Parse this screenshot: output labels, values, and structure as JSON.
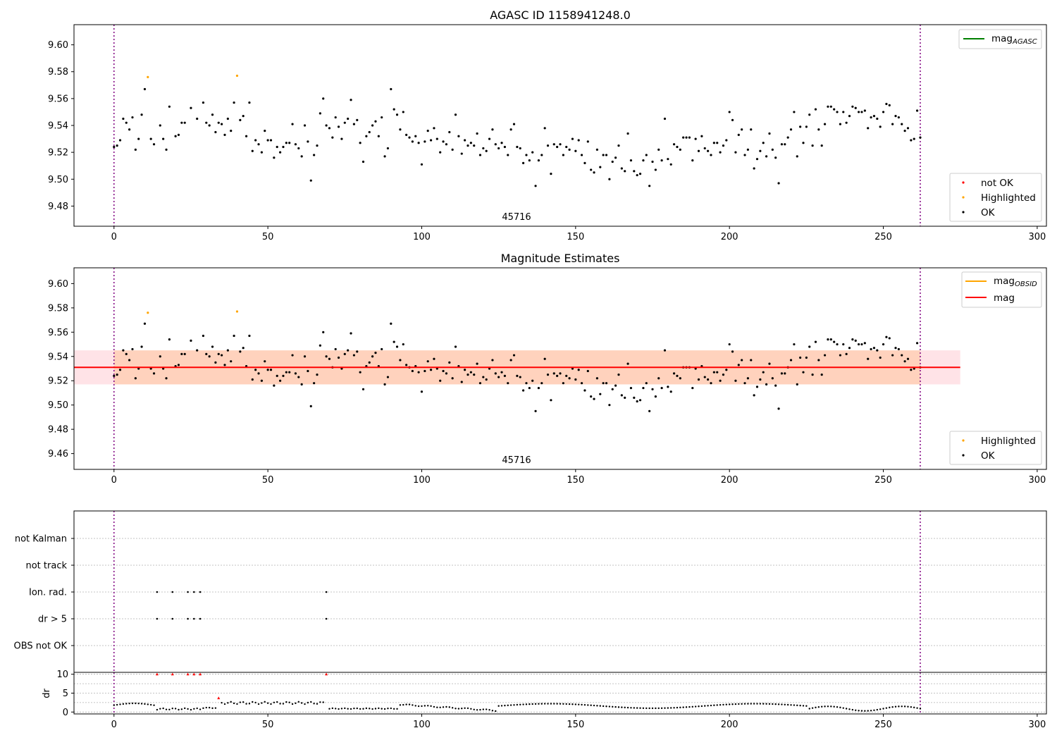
{
  "chart_data": [
    {
      "type": "scatter",
      "title": "AGASC ID 1158941248.0",
      "annotation": "45716",
      "xlim": [
        -13,
        303
      ],
      "ylim": [
        9.465,
        9.615
      ],
      "x_ticks": [
        0,
        50,
        100,
        150,
        200,
        250,
        300
      ],
      "y_ticks": [
        9.48,
        9.5,
        9.52,
        9.54,
        9.56,
        9.58,
        9.6
      ],
      "grid": false,
      "vertical_lines": [
        0,
        262
      ],
      "legend_top": {
        "position": "top-right",
        "entries": [
          {
            "label": "mag",
            "subscript": "AGASC",
            "color": "#008000"
          }
        ]
      },
      "legend_bottom": {
        "position": "bottom-right",
        "entries": [
          {
            "label": "not OK",
            "color": "#ff0000"
          },
          {
            "label": "Highlighted",
            "color": "#ffa500"
          },
          {
            "label": "OK",
            "color": "#000000"
          }
        ]
      },
      "series": [
        {
          "name": "Highlighted",
          "color": "#ffa500",
          "x": [
            11,
            40
          ],
          "y": [
            9.576,
            9.577
          ]
        },
        {
          "name": "OK",
          "color": "#000000",
          "x": [
            0,
            1,
            2,
            3,
            4,
            5,
            6,
            7,
            8,
            9,
            10,
            12,
            13,
            15,
            16,
            17,
            18,
            20,
            21,
            22,
            23,
            25,
            27,
            29,
            30,
            31,
            32,
            33,
            34,
            35,
            36,
            37,
            38,
            39,
            41,
            42,
            43,
            44,
            45,
            46,
            47,
            48,
            49,
            50,
            51,
            52,
            53,
            54,
            55,
            56,
            57,
            58,
            59,
            60,
            61,
            62,
            63,
            64,
            65,
            66,
            67,
            68,
            69,
            70,
            71,
            72,
            73,
            74,
            75,
            76,
            77,
            78,
            79,
            80,
            81,
            82,
            83,
            84,
            85,
            86,
            87,
            88,
            89,
            90,
            91,
            92,
            93,
            94,
            95,
            96,
            97,
            98,
            99,
            100,
            101,
            102,
            103,
            104,
            105,
            106,
            107,
            108,
            109,
            110,
            111,
            112,
            113,
            114,
            115,
            116,
            117,
            118,
            119,
            120,
            121,
            122,
            123,
            124,
            125,
            126,
            127,
            128,
            129,
            130,
            131,
            132,
            133,
            134,
            135,
            136,
            137,
            138,
            139,
            140,
            141,
            142,
            143,
            144,
            145,
            146,
            147,
            148,
            149,
            150,
            151,
            152,
            153,
            154,
            155,
            156,
            157,
            158,
            159,
            160,
            161,
            162,
            163,
            164,
            165,
            166,
            167,
            168,
            169,
            170,
            171,
            172,
            173,
            174,
            175,
            176,
            177,
            178,
            179,
            180,
            181,
            182,
            183,
            184,
            185,
            186,
            187,
            188,
            189,
            190,
            191,
            192,
            193,
            194,
            195,
            196,
            197,
            198,
            199,
            200,
            201,
            202,
            203,
            204,
            205,
            206,
            207,
            208,
            209,
            210,
            211,
            212,
            213,
            214,
            215,
            216,
            217,
            218,
            219,
            220,
            221,
            222,
            223,
            224,
            225,
            226,
            227,
            228,
            229,
            230,
            231,
            232,
            233,
            234,
            235,
            236,
            237,
            238,
            239,
            240,
            241,
            242,
            243,
            244,
            245,
            246,
            247,
            248,
            249,
            250,
            251,
            252,
            253,
            254,
            255,
            256,
            257,
            258,
            259,
            260,
            261,
            262
          ],
          "y": [
            9.524,
            9.525,
            9.529,
            9.545,
            9.542,
            9.537,
            9.546,
            9.522,
            9.53,
            9.548,
            9.567,
            9.53,
            9.526,
            9.54,
            9.53,
            9.522,
            9.554,
            9.532,
            9.533,
            9.542,
            9.542,
            9.553,
            9.545,
            9.557,
            9.542,
            9.54,
            9.548,
            9.535,
            9.542,
            9.541,
            9.533,
            9.545,
            9.536,
            9.557,
            9.544,
            9.547,
            9.532,
            9.557,
            9.521,
            9.529,
            9.526,
            9.52,
            9.536,
            9.529,
            9.529,
            9.516,
            9.524,
            9.52,
            9.524,
            9.527,
            9.527,
            9.541,
            9.526,
            9.523,
            9.517,
            9.54,
            9.528,
            9.499,
            9.518,
            9.525,
            9.549,
            9.56,
            9.54,
            9.538,
            9.531,
            9.546,
            9.539,
            9.53,
            9.542,
            9.545,
            9.559,
            9.541,
            9.544,
            9.527,
            9.513,
            9.532,
            9.535,
            9.54,
            9.543,
            9.532,
            9.546,
            9.517,
            9.523,
            9.567,
            9.552,
            9.548,
            9.537,
            9.55,
            9.533,
            9.531,
            9.528,
            9.532,
            9.527,
            9.511,
            9.528,
            9.536,
            9.529,
            9.538,
            9.53,
            9.52,
            9.528,
            9.526,
            9.535,
            9.522,
            9.548,
            9.532,
            9.519,
            9.529,
            9.525,
            9.527,
            9.525,
            9.534,
            9.518,
            9.523,
            9.521,
            9.53,
            9.537,
            9.526,
            9.523,
            9.527,
            9.524,
            9.518,
            9.537,
            9.541,
            9.524,
            9.523,
            9.512,
            9.518,
            9.514,
            9.52,
            9.495,
            9.514,
            9.518,
            9.538,
            9.525,
            9.504,
            9.526,
            9.524,
            9.526,
            9.518,
            9.524,
            9.522,
            9.53,
            9.521,
            9.529,
            9.518,
            9.512,
            9.528,
            9.507,
            9.505,
            9.522,
            9.509,
            9.518,
            9.518,
            9.5,
            9.513,
            9.516,
            9.525,
            9.508,
            9.506,
            9.534,
            9.514,
            9.506,
            9.503,
            9.504,
            9.514,
            9.518,
            9.495,
            9.513,
            9.507,
            9.522,
            9.514,
            9.545,
            9.515,
            9.511,
            9.526,
            9.524,
            9.522,
            9.531,
            9.531,
            9.531,
            9.514,
            9.53,
            9.521,
            9.532,
            9.523,
            9.521,
            9.518,
            9.527,
            9.527,
            9.52,
            9.525,
            9.529,
            9.55,
            9.544,
            9.52,
            9.533,
            9.537,
            9.518,
            9.522,
            9.537,
            9.508,
            9.515,
            9.521,
            9.527,
            9.517,
            9.534,
            9.522,
            9.516,
            9.497,
            9.526,
            9.526,
            9.531,
            9.537,
            9.55,
            9.517,
            9.539,
            9.527,
            9.539,
            9.548,
            9.525,
            9.552,
            9.537,
            9.525,
            9.541,
            9.554,
            9.554,
            9.552,
            9.55,
            9.541,
            9.55,
            9.542,
            9.547,
            9.554,
            9.553,
            9.55,
            9.55,
            9.551,
            9.538,
            9.546,
            9.547,
            9.545,
            9.539,
            9.55,
            9.556,
            9.555,
            9.541,
            9.547,
            9.546,
            9.541,
            9.536,
            9.538,
            9.529,
            9.53,
            9.551,
            9.531
          ]
        }
      ]
    },
    {
      "type": "scatter",
      "title": "Magnitude Estimates",
      "annotation": "45716",
      "xlim": [
        -13,
        303
      ],
      "ylim": [
        9.447,
        9.613
      ],
      "x_ticks": [
        0,
        50,
        100,
        150,
        200,
        250,
        300
      ],
      "y_ticks": [
        9.46,
        9.48,
        9.5,
        9.52,
        9.54,
        9.56,
        9.58,
        9.6
      ],
      "grid": false,
      "vertical_lines": [
        0,
        262
      ],
      "mag_line": {
        "value": 9.531,
        "color": "#ff0000",
        "band": [
          9.517,
          9.545
        ],
        "x_range": [
          -13,
          275
        ]
      },
      "legend_top": {
        "position": "top-right",
        "entries": [
          {
            "label": "mag",
            "subscript": "OBSID",
            "color": "#ffa500"
          },
          {
            "label": "mag",
            "color": "#ff0000"
          }
        ]
      },
      "legend_bottom": {
        "position": "bottom-right",
        "entries": [
          {
            "label": "Highlighted",
            "color": "#ffa500"
          },
          {
            "label": "OK",
            "color": "#000000"
          }
        ]
      },
      "series_ref": "same points as first panel"
    },
    {
      "type": "scatter",
      "categories": [
        "not Kalman",
        "not track",
        "Ion. rad.",
        "dr > 5",
        "OBS not OK"
      ],
      "flag_x": [
        14,
        19,
        24,
        26,
        28,
        69
      ],
      "flag_rows": [
        "Ion. rad.",
        "dr > 5"
      ],
      "vertical_lines": [
        0,
        262
      ]
    },
    {
      "type": "scatter",
      "ylabel": "dr",
      "xlim": [
        -13,
        303
      ],
      "ylim": [
        -0.5,
        10.5
      ],
      "x_ticks": [
        0,
        50,
        100,
        150,
        200,
        250,
        300
      ],
      "y_ticks": [
        0,
        5,
        10
      ],
      "red_markers": [
        {
          "x": 14,
          "y": 10
        },
        {
          "x": 19,
          "y": 10
        },
        {
          "x": 24,
          "y": 10
        },
        {
          "x": 26,
          "y": 10
        },
        {
          "x": 28,
          "y": 10
        },
        {
          "x": 69,
          "y": 10
        },
        {
          "x": 34,
          "y": 3.7
        }
      ],
      "dr_segments": [
        {
          "x0": 0,
          "x1": 13,
          "shape": "hump",
          "base": 1.8,
          "amp": 0.5
        },
        {
          "x0": 14,
          "x1": 28,
          "shape": "flat",
          "base": 0.8,
          "amp": 0.2
        },
        {
          "x0": 29,
          "x1": 33,
          "shape": "flat",
          "base": 1.1,
          "amp": 0.1
        },
        {
          "x0": 35,
          "x1": 68,
          "shape": "flat",
          "base": 2.4,
          "amp": 0.3
        },
        {
          "x0": 70,
          "x1": 92,
          "shape": "flat",
          "base": 0.9,
          "amp": 0.1
        },
        {
          "x0": 93,
          "x1": 124,
          "shape": "decay",
          "base": 2.0,
          "amp": 1.6
        },
        {
          "x0": 125,
          "x1": 225,
          "shape": "wave",
          "base": 1.6,
          "amp": 0.6
        },
        {
          "x0": 226,
          "x1": 262,
          "shape": "wave",
          "base": 0.9,
          "amp": 0.6
        }
      ],
      "vertical_lines": [
        0,
        262
      ]
    }
  ]
}
